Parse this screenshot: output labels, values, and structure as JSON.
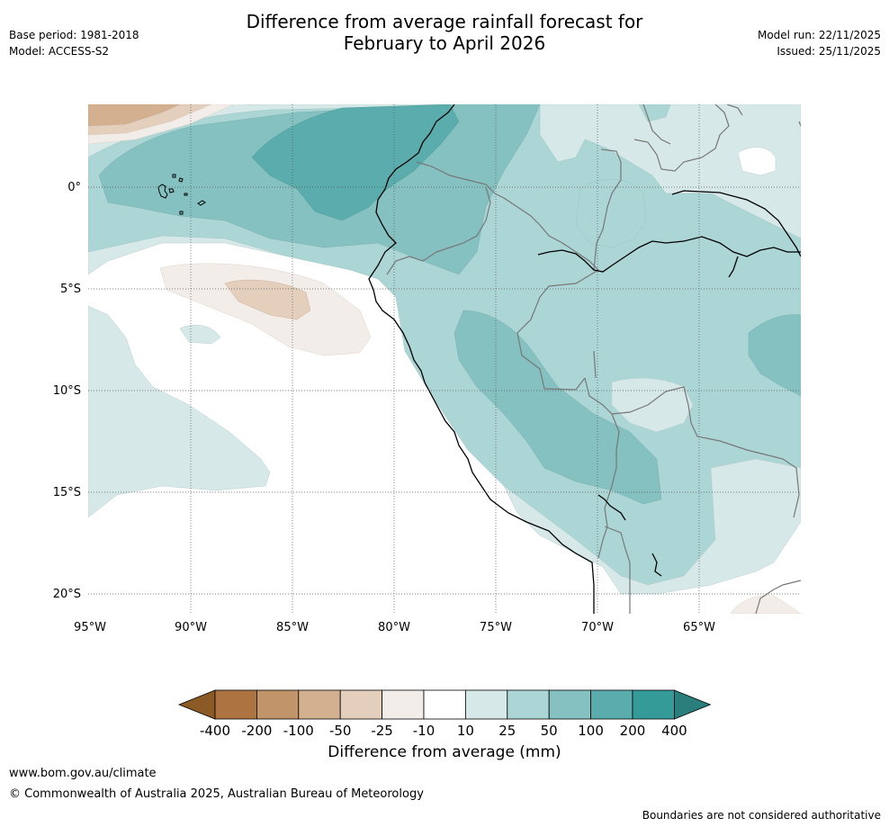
{
  "header": {
    "title_line1": "Difference from average rainfall forecast for",
    "title_line2": "February to April 2026",
    "base_period": "Base period: 1981-2018",
    "model": "Model: ACCESS-S2",
    "model_run": "Model run: 22/11/2025",
    "issued": "Issued: 25/11/2025"
  },
  "map": {
    "lat_labels": [
      "0°",
      "5°S",
      "10°S",
      "15°S",
      "20°S"
    ],
    "lon_labels": [
      "95°W",
      "90°W",
      "85°W",
      "80°W",
      "75°W",
      "70°W",
      "65°W"
    ]
  },
  "legend": {
    "title": "Difference from average (mm)",
    "tick_labels": [
      "-400",
      "-200",
      "-100",
      "-50",
      "-25",
      "-10",
      "10",
      "25",
      "50",
      "100",
      "200",
      "400"
    ],
    "colors": [
      "#8c5a24",
      "#ad7441",
      "#c1946a",
      "#d2b090",
      "#e3cfbc",
      "#f2ede8",
      "#ffffff",
      "#d6e8e7",
      "#acd6d5",
      "#85c1c0",
      "#5bacac",
      "#359b99",
      "#2a7f7c"
    ]
  },
  "footer": {
    "url": "www.bom.gov.au/climate",
    "copyright": "© Commonwealth of Australia 2025, Australian Bureau of Meteorology",
    "disclaimer": "Boundaries are not considered authoritative"
  }
}
